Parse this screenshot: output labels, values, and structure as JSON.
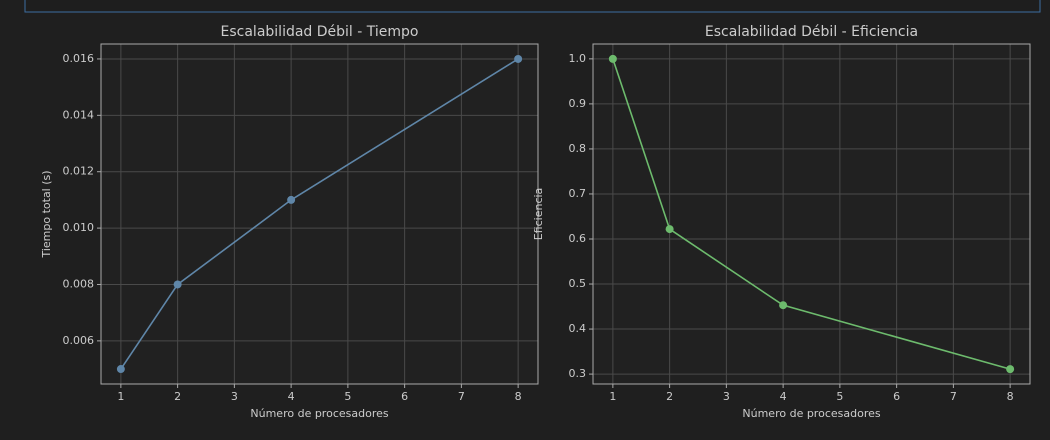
{
  "chart_data": [
    {
      "type": "line",
      "title": "Escalabilidad Débil - Tiempo",
      "xlabel": "Número de procesadores",
      "ylabel": "Tiempo total (s)",
      "x": [
        1,
        2,
        4,
        8
      ],
      "series": [
        {
          "name": "Tiempo",
          "color": "#5f86a8",
          "values": [
            0.005,
            0.008,
            0.011,
            0.016
          ]
        }
      ],
      "xlim": [
        0.65,
        8.35
      ],
      "xticks": [
        1,
        2,
        3,
        4,
        5,
        6,
        7,
        8
      ],
      "ylim": [
        0.00447,
        0.01653
      ],
      "yticks": [
        {
          "value": 0.006,
          "label": "0.006"
        },
        {
          "value": 0.008,
          "label": "0.008"
        },
        {
          "value": 0.01,
          "label": "0.010"
        },
        {
          "value": 0.012,
          "label": "0.012"
        },
        {
          "value": 0.014,
          "label": "0.014"
        },
        {
          "value": 0.016,
          "label": "0.016"
        }
      ],
      "grid": true
    },
    {
      "type": "line",
      "title": "Escalabilidad Débil - Eficiencia",
      "xlabel": "Número de procesadores",
      "ylabel": "Eficiencia",
      "x": [
        1,
        2,
        4,
        8
      ],
      "series": [
        {
          "name": "Eficiencia",
          "color": "#6dbb6d",
          "values": [
            1.0,
            0.622,
            0.453,
            0.311
          ]
        }
      ],
      "xlim": [
        0.65,
        8.35
      ],
      "xticks": [
        1,
        2,
        3,
        4,
        5,
        6,
        7,
        8
      ],
      "ylim": [
        0.278,
        1.033
      ],
      "yticks": [
        {
          "value": 0.3,
          "label": "0.3"
        },
        {
          "value": 0.4,
          "label": "0.4"
        },
        {
          "value": 0.5,
          "label": "0.5"
        },
        {
          "value": 0.6,
          "label": "0.6"
        },
        {
          "value": 0.7,
          "label": "0.7"
        },
        {
          "value": 0.8,
          "label": "0.8"
        },
        {
          "value": 0.9,
          "label": "0.9"
        },
        {
          "value": 1.0,
          "label": "1.0"
        }
      ],
      "grid": true
    }
  ]
}
